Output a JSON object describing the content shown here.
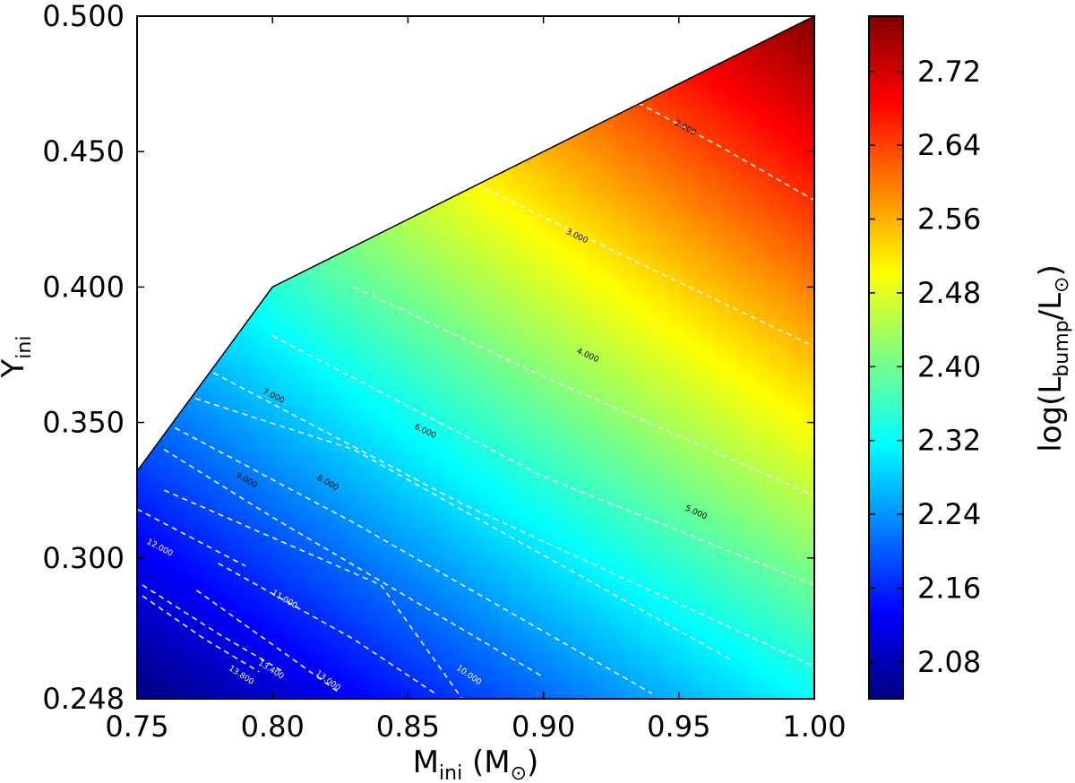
{
  "chart_data": {
    "type": "heatmap",
    "title": "",
    "xlabel": {
      "main": "M",
      "sub": "ini",
      "unit_open": " (M",
      "unit_sym": "⊙",
      "unit_close": ")"
    },
    "ylabel": {
      "main": "Y",
      "sub": "ini"
    },
    "colorbar_label": {
      "pre": "log(L",
      "sub": "bump",
      "mid": "/L",
      "sub2": "⊙",
      "post": ")"
    },
    "xlim": [
      0.75,
      1.0
    ],
    "ylim": [
      0.248,
      0.5
    ],
    "x_ticks": [
      "0.75",
      "0.80",
      "0.85",
      "0.90",
      "0.95",
      "1.00"
    ],
    "x_tick_values": [
      0.75,
      0.8,
      0.85,
      0.9,
      0.95,
      1.0
    ],
    "y_ticks": [
      "0.248",
      "0.300",
      "0.350",
      "0.400",
      "0.450",
      "0.500"
    ],
    "y_tick_values": [
      0.248,
      0.3,
      0.35,
      0.4,
      0.45,
      0.5
    ],
    "colorbar_range": [
      2.04,
      2.78
    ],
    "colorbar_ticks": [
      "2.08",
      "2.16",
      "2.24",
      "2.32",
      "2.40",
      "2.48",
      "2.56",
      "2.64",
      "2.72"
    ],
    "colorbar_tick_values": [
      2.08,
      2.16,
      2.24,
      2.32,
      2.4,
      2.48,
      2.56,
      2.64,
      2.72
    ],
    "colormap": "jet",
    "boundary": [
      [
        0.75,
        0.332
      ],
      [
        0.8,
        0.4
      ],
      [
        1.0,
        0.5
      ]
    ],
    "field_corners": {
      "bottom_left": 2.04,
      "bottom_right": 2.35,
      "left_top_0.332": 2.22,
      "mid_0.80_0.40": 2.44,
      "top_right": 2.78
    },
    "contours": [
      {
        "label": "2.000",
        "points": [
          [
            0.935,
            0.468
          ],
          [
            0.965,
            0.452
          ],
          [
            1.0,
            0.432
          ]
        ],
        "label_at": [
          0.952,
          0.458
        ],
        "label_color": "#000000"
      },
      {
        "label": "3.000",
        "points": [
          [
            0.875,
            0.438
          ],
          [
            0.935,
            0.409
          ],
          [
            1.0,
            0.378
          ]
        ],
        "label_at": [
          0.912,
          0.418
        ],
        "label_color": "#000000"
      },
      {
        "label": "4.000",
        "points": [
          [
            0.83,
            0.4
          ],
          [
            0.9,
            0.367
          ],
          [
            1.0,
            0.323
          ]
        ],
        "label_at": [
          0.916,
          0.374
        ],
        "label_color": "#000000"
      },
      {
        "label": "5.000",
        "points": [
          [
            0.8,
            0.382
          ],
          [
            0.9,
            0.33
          ],
          [
            1.0,
            0.29
          ]
        ],
        "label_at": [
          0.956,
          0.316
        ],
        "label_color": "#000000"
      },
      {
        "label": "6.000",
        "points": [
          [
            0.775,
            0.37
          ],
          [
            0.87,
            0.32
          ],
          [
            1.0,
            0.26
          ]
        ],
        "label_at": [
          0.856,
          0.346
        ],
        "label_color": "#000000"
      },
      {
        "label": "7.000",
        "points": [
          [
            0.768,
            0.36
          ],
          [
            0.83,
            0.34
          ],
          [
            0.97,
            0.262
          ]
        ],
        "label_at": [
          0.8,
          0.359
        ],
        "label_color": "#000000"
      },
      {
        "label": "8.000",
        "points": [
          [
            0.764,
            0.348
          ],
          [
            0.83,
            0.313
          ],
          [
            0.94,
            0.25
          ]
        ],
        "label_at": [
          0.82,
          0.327
        ],
        "label_color": "#000000"
      },
      {
        "label": "9.000",
        "points": [
          [
            0.76,
            0.34
          ],
          [
            0.8,
            0.315
          ],
          [
            0.9,
            0.256
          ]
        ],
        "label_at": [
          0.79,
          0.328
        ],
        "label_color": "#000000"
      },
      {
        "label": "10.000",
        "points": [
          [
            0.76,
            0.325
          ],
          [
            0.84,
            0.29
          ],
          [
            0.87,
            0.248
          ]
        ],
        "label_at": [
          0.872,
          0.256
        ],
        "label_color": "#ffffff"
      },
      {
        "label": "11.000",
        "points": [
          [
            0.78,
            0.298
          ],
          [
            0.83,
            0.27
          ],
          [
            0.86,
            0.25
          ]
        ],
        "label_at": [
          0.804,
          0.284
        ],
        "label_color": "#ffffff"
      },
      {
        "label": "12.000",
        "points": [
          [
            0.75,
            0.318
          ],
          [
            0.79,
            0.297
          ]
        ],
        "label_at": [
          0.758,
          0.303
        ],
        "label_color": "#ffffff"
      },
      {
        "label": "13.000",
        "points": [
          [
            0.772,
            0.288
          ],
          [
            0.8,
            0.268
          ],
          [
            0.825,
            0.25
          ]
        ],
        "label_at": [
          0.82,
          0.254
        ],
        "label_color": "#ffffff"
      },
      {
        "label": "13.400",
        "points": [
          [
            0.752,
            0.29
          ],
          [
            0.78,
            0.272
          ],
          [
            0.804,
            0.258
          ]
        ],
        "label_at": [
          0.799,
          0.258
        ],
        "label_color": "#ffffff"
      },
      {
        "label": "13.800",
        "points": [
          [
            0.752,
            0.286
          ],
          [
            0.775,
            0.27
          ],
          [
            0.795,
            0.258
          ]
        ],
        "label_at": [
          0.788,
          0.256
        ],
        "label_color": "#ffffff"
      }
    ]
  }
}
